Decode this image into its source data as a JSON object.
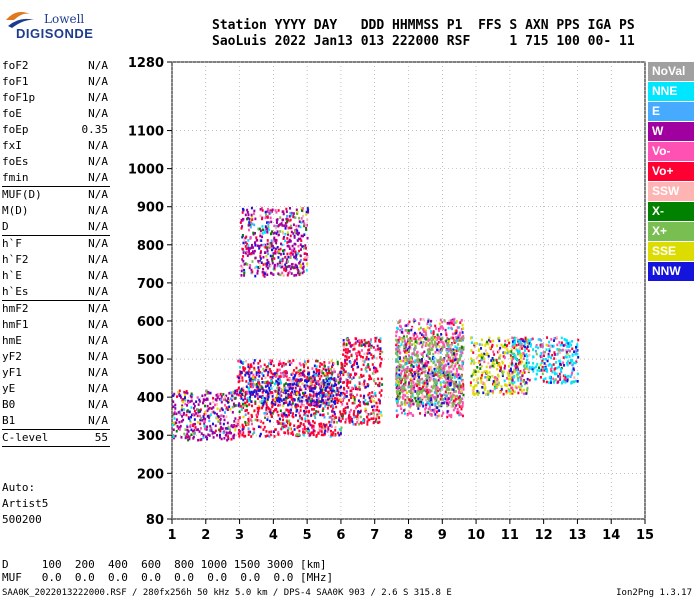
{
  "logo": {
    "brand": "Lowell",
    "name": "DIGISONDE"
  },
  "header": {
    "line1": "Station YYYY DAY   DDD HHMMSS P1  FFS S AXN PPS IGA PS",
    "line2": "SaoLuis 2022 Jan13 013 222000 RSF     1 715 100 00- 11"
  },
  "params": [
    {
      "name": "foF2",
      "value": "N/A"
    },
    {
      "name": "foF1",
      "value": "N/A"
    },
    {
      "name": "foF1p",
      "value": "N/A"
    },
    {
      "name": "foE",
      "value": "N/A"
    },
    {
      "name": "foEp",
      "value": "0.35"
    },
    {
      "name": "fxI",
      "value": "N/A"
    },
    {
      "name": "foEs",
      "value": "N/A"
    },
    {
      "name": "fmin",
      "value": "N/A"
    },
    {
      "sep": true
    },
    {
      "name": "MUF(D)",
      "value": "N/A"
    },
    {
      "name": "M(D)",
      "value": "N/A"
    },
    {
      "name": "D",
      "value": "N/A"
    },
    {
      "sep": true
    },
    {
      "name": "h`F",
      "value": "N/A"
    },
    {
      "name": "h`F2",
      "value": "N/A"
    },
    {
      "name": "h`E",
      "value": "N/A"
    },
    {
      "name": "h`Es",
      "value": "N/A"
    },
    {
      "sep": true
    },
    {
      "name": "hmF2",
      "value": "N/A"
    },
    {
      "name": "hmF1",
      "value": "N/A"
    },
    {
      "name": "hmE",
      "value": "N/A"
    },
    {
      "name": "yF2",
      "value": "N/A"
    },
    {
      "name": "yF1",
      "value": "N/A"
    },
    {
      "name": "yE",
      "value": "N/A"
    },
    {
      "name": "B0",
      "value": "N/A"
    },
    {
      "name": "B1",
      "value": "N/A"
    },
    {
      "sep": true
    },
    {
      "name": "C-level",
      "value": "55"
    },
    {
      "sep": true
    }
  ],
  "auto": {
    "line1": "Auto:",
    "line2": "Artist5",
    "line3": "500200"
  },
  "bottom": {
    "d_line": "D     100  200  400  600  800 1000 1500 3000 [km]",
    "muf_line": "MUF   0.0  0.0  0.0  0.0  0.0  0.0  0.0  0.0 [MHz]"
  },
  "footer": {
    "left": "SAA0K_2022013222000.RSF / 280fx256h 50 kHz 5.0 km / DPS-4 SAA0K 903 / 2.6 S 315.8 E",
    "right": "Ion2Png 1.3.17"
  },
  "legend": [
    {
      "label": "NoVal",
      "color": "#a0a0a0",
      "text": "#ffffff"
    },
    {
      "label": "NNE",
      "color": "#00e6ff",
      "text": "#ffffff"
    },
    {
      "label": "E",
      "color": "#46aaff",
      "text": "#ffffff"
    },
    {
      "label": "W",
      "color": "#a000a0",
      "text": "#ffffff"
    },
    {
      "label": "Vo-",
      "color": "#ff50b4",
      "text": "#ffffff"
    },
    {
      "label": "Vo+",
      "color": "#ff0032",
      "text": "#ffffff"
    },
    {
      "label": "SSW",
      "color": "#ffb4b4",
      "text": "#ffffff"
    },
    {
      "label": "X-",
      "color": "#008200",
      "text": "#ffffff"
    },
    {
      "label": "X+",
      "color": "#78be50",
      "text": "#ffffff"
    },
    {
      "label": "SSE",
      "color": "#dcdc00",
      "text": "#ffffff"
    },
    {
      "label": "NNW",
      "color": "#1414dc",
      "text": "#ffffff"
    }
  ],
  "chart_data": {
    "type": "scatter",
    "title": "",
    "xlabel": "",
    "ylabel": "",
    "xlim": [
      1,
      15
    ],
    "ylim": [
      80,
      1280
    ],
    "xticks": [
      "1",
      "2",
      "3",
      "4",
      "5",
      "6",
      "7",
      "8",
      "9",
      "10",
      "11",
      "12",
      "13",
      "14",
      "15"
    ],
    "yticks": [
      "80",
      "200",
      "300",
      "400",
      "500",
      "600",
      "700",
      "800",
      "900",
      "1000",
      "1100",
      "1280"
    ],
    "grid": true,
    "legend_placement": "right",
    "clusters": [
      {
        "name": "W",
        "x": [
          1.0,
          2.9
        ],
        "y": [
          290,
          420
        ]
      },
      {
        "name": "Vo+",
        "x": [
          2.9,
          6.0
        ],
        "y": [
          300,
          500
        ]
      },
      {
        "name": "NNW",
        "x": [
          2.9,
          6.0
        ],
        "y": [
          380,
          470
        ]
      },
      {
        "name": "Vo+",
        "x": [
          6.0,
          7.2
        ],
        "y": [
          330,
          560
        ]
      },
      {
        "name": "Vo-",
        "x": [
          7.6,
          9.6
        ],
        "y": [
          350,
          610
        ]
      },
      {
        "name": "X+",
        "x": [
          7.6,
          9.6
        ],
        "y": [
          380,
          560
        ]
      },
      {
        "name": "SSE",
        "x": [
          9.8,
          11.5
        ],
        "y": [
          410,
          560
        ]
      },
      {
        "name": "NNE",
        "x": [
          11.0,
          13.0
        ],
        "y": [
          440,
          560
        ]
      },
      {
        "name": "W",
        "x": [
          3.0,
          5.0
        ],
        "y": [
          720,
          900
        ]
      }
    ]
  }
}
